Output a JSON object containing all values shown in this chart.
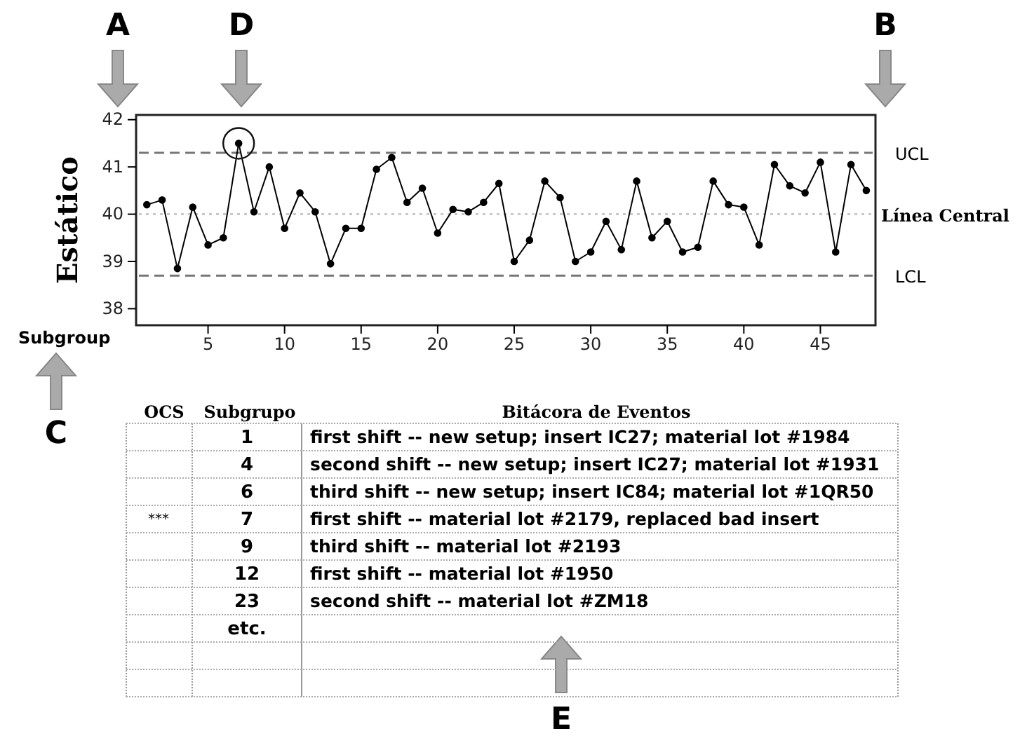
{
  "chart_data": {
    "type": "line",
    "xlabel": "Subgroup",
    "ylabel": "Estático",
    "x": [
      1,
      2,
      3,
      4,
      5,
      6,
      7,
      8,
      9,
      10,
      11,
      12,
      13,
      14,
      15,
      16,
      17,
      18,
      19,
      20,
      21,
      22,
      23,
      24,
      25,
      26,
      27,
      28,
      29,
      30,
      31,
      32,
      33,
      34,
      35,
      36,
      37,
      38,
      39,
      40,
      41,
      42,
      43,
      44,
      45,
      46,
      47,
      48
    ],
    "series": [
      {
        "color": "#000000",
        "values": [
          40.2,
          40.3,
          38.85,
          40.15,
          39.35,
          39.5,
          41.5,
          40.05,
          41.0,
          39.7,
          40.45,
          40.05,
          38.95,
          39.7,
          39.7,
          40.95,
          41.2,
          40.25,
          40.55,
          39.6,
          40.1,
          40.05,
          40.25,
          40.65,
          39.0,
          39.45,
          40.7,
          40.35,
          39.0,
          39.2,
          39.85,
          39.25,
          40.7,
          39.5,
          39.85,
          39.2,
          39.3,
          40.7,
          40.2,
          40.15,
          39.35,
          41.05,
          40.6,
          40.45,
          41.1,
          39.2,
          41.05,
          40.5
        ]
      }
    ],
    "xlim": [
      0.3,
      48.6
    ],
    "xticks": [
      5,
      10,
      15,
      20,
      25,
      30,
      35,
      40,
      45
    ],
    "ylim": [
      37.65,
      42.1
    ],
    "yticks": [
      38,
      39,
      40,
      41,
      42
    ],
    "marker": "circle",
    "line_style": "solid",
    "grid": false,
    "ref_lines": [
      {
        "axis": "y",
        "value": 41.3,
        "label": "UCL",
        "line_style": "dashed",
        "color": "#777777"
      },
      {
        "axis": "y",
        "value": 40,
        "label": "Línea Central",
        "line_style": "dotted",
        "color": "#c8c8c8"
      },
      {
        "axis": "y",
        "value": 38.7,
        "label": "LCL",
        "line_style": "dashed",
        "color": "#777777"
      }
    ],
    "annotations": [
      "A",
      "B",
      "C",
      "D",
      "E",
      "OCS",
      "Subgrupo",
      "Bitácora de Eventos",
      "1",
      "4",
      "6",
      "7",
      "9",
      "12",
      "23",
      "etc.",
      "first shift -- new setup; insert IC27; material lot #1984",
      "second shift -- new setup; insert IC27; material lot #1931",
      "third shift -- new setup; insert IC84; material lot #1QR50",
      "first shift -- material lot #2179, replaced bad insert",
      "third shift -- material lot #2193",
      "first shift -- material lot #1950",
      "second shift -- material lot #ZM18",
      "***"
    ]
  }
}
